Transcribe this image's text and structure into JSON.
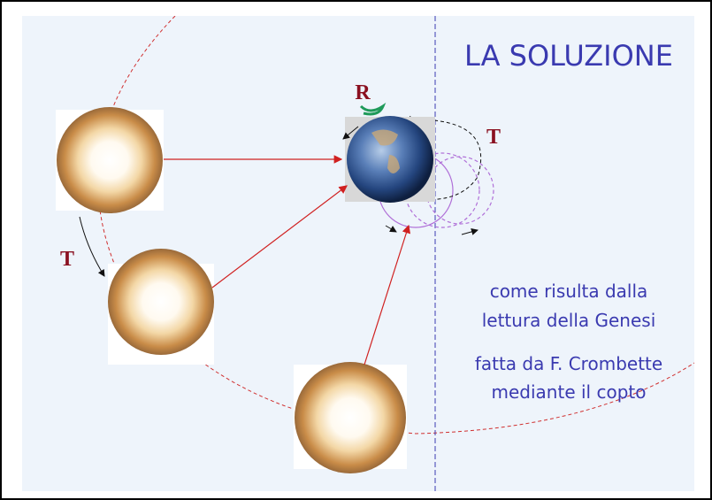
{
  "title": "LA SOLUZIONE",
  "labels": {
    "rotation": "R",
    "translation_top": "T",
    "translation_left": "T"
  },
  "caption": [
    "come risulta dalla",
    "lettura della Genesi",
    "fatta da F. Crombette",
    "mediante il copto"
  ]
}
